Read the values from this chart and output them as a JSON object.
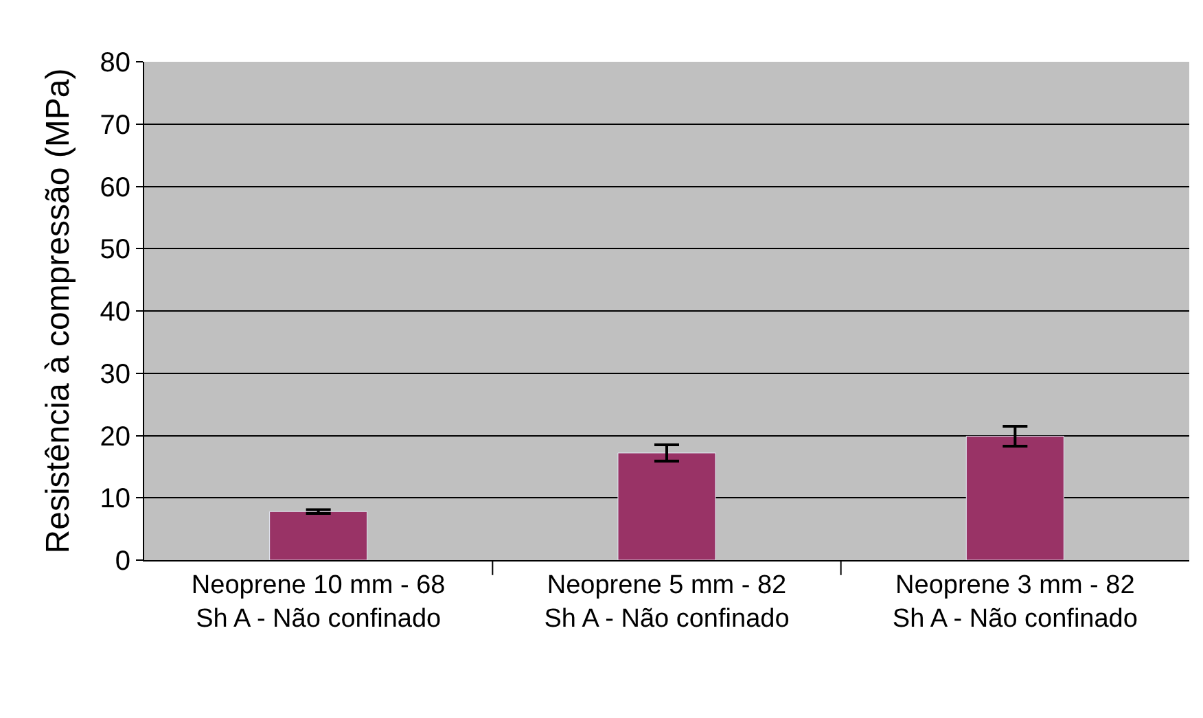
{
  "chart_data": {
    "type": "bar",
    "ylabel": "Resistência à compressão (MPa)",
    "categories": [
      "Neoprene 10 mm - 68 Sh A - Não confinado",
      "Neoprene 5 mm - 82 Sh A - Não confinado",
      "Neoprene 3 mm - 82 Sh A - Não confinado"
    ],
    "values": [
      7.8,
      17.2,
      19.9
    ],
    "errors": [
      0.3,
      1.3,
      1.6
    ],
    "color": "#993366",
    "ylim": [
      0,
      80
    ],
    "yticks": [
      0,
      10,
      20,
      30,
      40,
      50,
      60,
      70,
      80
    ],
    "grid": "y"
  }
}
